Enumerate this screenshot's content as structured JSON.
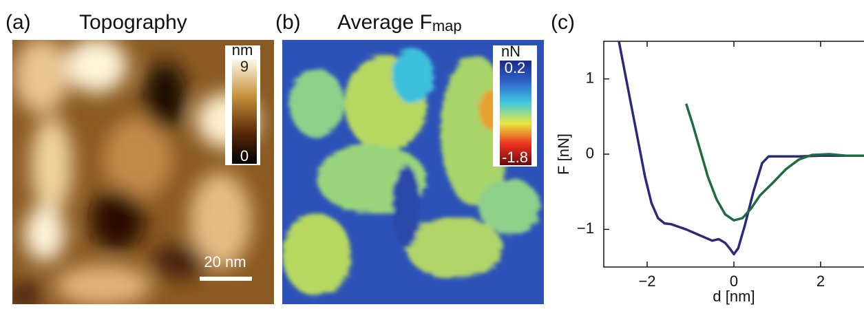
{
  "panel_a": {
    "letter": "(a)",
    "title": "Topography",
    "colorbar_unit": "nm",
    "colorbar_max": "9",
    "colorbar_min": "0",
    "scalebar": "20 nm"
  },
  "panel_b": {
    "letter": "(b)",
    "title": "Average F",
    "title_subscript": "map",
    "colorbar_unit": "nN",
    "colorbar_max": "0.2",
    "colorbar_min": "-1.8"
  },
  "chart_data": {
    "type": "line",
    "letter": "(c)",
    "x_label": "d [nm]",
    "y_label": "F [nN]",
    "xlim": [
      -3,
      3
    ],
    "ylim": [
      -1.5,
      1.5
    ],
    "xticks": [
      {
        "value": -2,
        "label": "−2"
      },
      0,
      2
    ],
    "yticks": [
      {
        "value": -1,
        "label": "−1"
      },
      0,
      1
    ],
    "series": [
      {
        "color": "#2b2a7a",
        "x": [
          -2.65,
          -2.45,
          -2.25,
          -2.05,
          -1.9,
          -1.75,
          -1.6,
          -1.45,
          -1.3,
          -1.1,
          -0.9,
          -0.7,
          -0.5,
          -0.35,
          -0.2,
          -0.1,
          0,
          0.1,
          0.25,
          0.45,
          0.65,
          0.8,
          1.0,
          1.5,
          2.0,
          2.5,
          3.0
        ],
        "values": [
          1.5,
          0.9,
          0.3,
          -0.3,
          -0.65,
          -0.85,
          -0.92,
          -0.93,
          -0.96,
          -1.0,
          -1.05,
          -1.1,
          -1.15,
          -1.13,
          -1.18,
          -1.25,
          -1.33,
          -1.25,
          -0.95,
          -0.5,
          -0.12,
          -0.03,
          -0.03,
          -0.03,
          -0.02,
          -0.02,
          -0.02
        ]
      },
      {
        "color": "#1e6b3f",
        "x": [
          -1.1,
          -0.95,
          -0.8,
          -0.6,
          -0.4,
          -0.2,
          0,
          0.2,
          0.4,
          0.6,
          0.9,
          1.2,
          1.5,
          1.8,
          2.2,
          2.6,
          3.0
        ],
        "values": [
          0.67,
          0.4,
          0.1,
          -0.3,
          -0.6,
          -0.8,
          -0.88,
          -0.85,
          -0.72,
          -0.55,
          -0.38,
          -0.2,
          -0.07,
          -0.01,
          0.0,
          -0.02,
          -0.02
        ]
      }
    ]
  }
}
